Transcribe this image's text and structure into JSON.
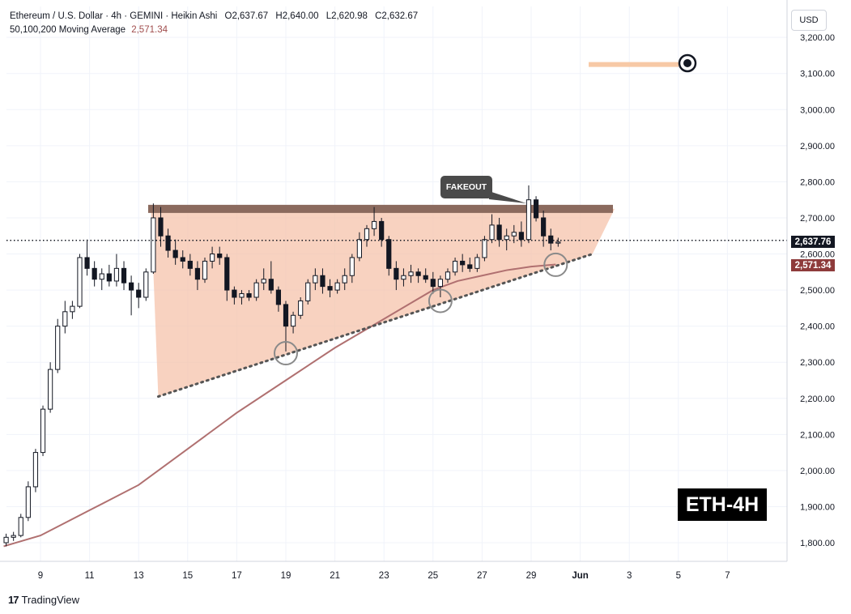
{
  "legend": {
    "symbol": "Ethereum / U.S. Dollar · 4h · GEMINI · Heikin Ashi",
    "o_key": "O",
    "o": "2,637.67",
    "h_key": "H",
    "h": "2,640.00",
    "l_key": "L",
    "l": "2,620.98",
    "c_key": "C",
    "c": "2,632.67",
    "ma_label": "50,100,200 Moving Average",
    "ma_value": "2,571.34"
  },
  "currency": "USD",
  "last_price_tag": "2,637.76",
  "ma_price_tag": "2,571.34",
  "badge": "ETH-4H",
  "annotation": "FAKEOUT",
  "branding": {
    "logo_mark": "17",
    "name": "TradingView"
  },
  "colors": {
    "candle": "#131722",
    "triangle_fill": "#f6c3ab",
    "resistance": "#8b6a5e",
    "ma": "#b07070",
    "target": "#f7c9a6"
  },
  "chart_data": {
    "type": "candlestick",
    "x_tick_labels": [
      "9",
      "11",
      "13",
      "15",
      "17",
      "19",
      "21",
      "23",
      "25",
      "27",
      "29",
      "Jun",
      "3",
      "5",
      "7"
    ],
    "y_tick_labels": [
      "1,800.00",
      "1,900.00",
      "2,000.00",
      "2,100.00",
      "2,200.00",
      "2,300.00",
      "2,400.00",
      "2,500.00",
      "2,600.00",
      "2,700.00",
      "2,800.00",
      "2,900.00",
      "3,000.00",
      "3,100.00",
      "3,200.00"
    ],
    "ylim": [
      1780,
      3250
    ],
    "grid": true,
    "last_price": 2637.76,
    "moving_average": [
      [
        7.5,
        1790
      ],
      [
        9,
        1820
      ],
      [
        11,
        1890
      ],
      [
        13,
        1960
      ],
      [
        15,
        2060
      ],
      [
        17,
        2160
      ],
      [
        19,
        2250
      ],
      [
        21,
        2340
      ],
      [
        23,
        2420
      ],
      [
        24,
        2460
      ],
      [
        25,
        2500
      ],
      [
        26,
        2525
      ],
      [
        27,
        2540
      ],
      [
        28,
        2555
      ],
      [
        29,
        2565
      ],
      [
        30,
        2571
      ]
    ],
    "resistance_level": 2725,
    "rising_trendline": [
      [
        13.8,
        2205
      ],
      [
        31.5,
        2600
      ]
    ],
    "triangle_region": [
      [
        13.5,
        2725
      ],
      [
        13.8,
        2205
      ],
      [
        31.5,
        2600
      ],
      [
        32.4,
        2725
      ]
    ],
    "target_level": 3125,
    "candles": [
      [
        7.6,
        1800,
        1825,
        1790,
        1815
      ],
      [
        7.9,
        1815,
        1830,
        1805,
        1820
      ],
      [
        8.2,
        1820,
        1880,
        1815,
        1870
      ],
      [
        8.5,
        1870,
        1970,
        1860,
        1955
      ],
      [
        8.8,
        1955,
        2060,
        1940,
        2050
      ],
      [
        9.1,
        2050,
        2180,
        2040,
        2170
      ],
      [
        9.4,
        2170,
        2300,
        2160,
        2280
      ],
      [
        9.7,
        2280,
        2420,
        2270,
        2400
      ],
      [
        10.0,
        2400,
        2470,
        2380,
        2440
      ],
      [
        10.3,
        2440,
        2470,
        2420,
        2455
      ],
      [
        10.6,
        2455,
        2600,
        2450,
        2590
      ],
      [
        10.9,
        2590,
        2640,
        2540,
        2560
      ],
      [
        11.2,
        2560,
        2580,
        2510,
        2530
      ],
      [
        11.5,
        2530,
        2560,
        2500,
        2545
      ],
      [
        11.8,
        2545,
        2570,
        2510,
        2525
      ],
      [
        12.1,
        2525,
        2600,
        2510,
        2560
      ],
      [
        12.4,
        2560,
        2580,
        2500,
        2520
      ],
      [
        12.7,
        2520,
        2540,
        2430,
        2500
      ],
      [
        13.0,
        2500,
        2520,
        2450,
        2480
      ],
      [
        13.3,
        2480,
        2560,
        2470,
        2550
      ],
      [
        13.6,
        2550,
        2740,
        2545,
        2700
      ],
      [
        13.9,
        2700,
        2730,
        2620,
        2650
      ],
      [
        14.2,
        2650,
        2670,
        2590,
        2610
      ],
      [
        14.5,
        2610,
        2640,
        2570,
        2590
      ],
      [
        14.8,
        2590,
        2610,
        2560,
        2580
      ],
      [
        15.1,
        2580,
        2600,
        2540,
        2560
      ],
      [
        15.4,
        2560,
        2580,
        2500,
        2530
      ],
      [
        15.7,
        2530,
        2590,
        2520,
        2580
      ],
      [
        16.0,
        2580,
        2620,
        2560,
        2600
      ],
      [
        16.3,
        2600,
        2620,
        2570,
        2590
      ],
      [
        16.6,
        2590,
        2600,
        2470,
        2500
      ],
      [
        16.9,
        2500,
        2510,
        2460,
        2480
      ],
      [
        17.2,
        2480,
        2500,
        2460,
        2490
      ],
      [
        17.5,
        2490,
        2500,
        2470,
        2480
      ],
      [
        17.8,
        2480,
        2530,
        2470,
        2520
      ],
      [
        18.1,
        2520,
        2560,
        2500,
        2530
      ],
      [
        18.4,
        2530,
        2580,
        2490,
        2500
      ],
      [
        18.7,
        2500,
        2510,
        2440,
        2460
      ],
      [
        19.0,
        2460,
        2470,
        2330,
        2400
      ],
      [
        19.3,
        2400,
        2440,
        2380,
        2430
      ],
      [
        19.6,
        2430,
        2480,
        2420,
        2470
      ],
      [
        19.9,
        2470,
        2530,
        2460,
        2520
      ],
      [
        20.2,
        2520,
        2560,
        2500,
        2540
      ],
      [
        20.5,
        2540,
        2560,
        2490,
        2510
      ],
      [
        20.8,
        2510,
        2530,
        2480,
        2500
      ],
      [
        21.1,
        2500,
        2530,
        2490,
        2520
      ],
      [
        21.4,
        2520,
        2560,
        2500,
        2540
      ],
      [
        21.7,
        2540,
        2600,
        2520,
        2590
      ],
      [
        22.0,
        2590,
        2660,
        2580,
        2640
      ],
      [
        22.3,
        2640,
        2680,
        2620,
        2670
      ],
      [
        22.6,
        2670,
        2730,
        2650,
        2690
      ],
      [
        22.9,
        2690,
        2700,
        2620,
        2640
      ],
      [
        23.2,
        2640,
        2650,
        2540,
        2560
      ],
      [
        23.5,
        2560,
        2580,
        2500,
        2530
      ],
      [
        23.8,
        2530,
        2560,
        2510,
        2540
      ],
      [
        24.1,
        2540,
        2570,
        2520,
        2550
      ],
      [
        24.4,
        2550,
        2560,
        2520,
        2540
      ],
      [
        24.7,
        2540,
        2560,
        2520,
        2530
      ],
      [
        25.0,
        2530,
        2550,
        2490,
        2510
      ],
      [
        25.3,
        2510,
        2540,
        2480,
        2530
      ],
      [
        25.6,
        2530,
        2560,
        2520,
        2550
      ],
      [
        25.9,
        2550,
        2590,
        2540,
        2580
      ],
      [
        26.2,
        2580,
        2600,
        2550,
        2570
      ],
      [
        26.5,
        2570,
        2590,
        2550,
        2560
      ],
      [
        26.8,
        2560,
        2600,
        2550,
        2590
      ],
      [
        27.1,
        2590,
        2650,
        2580,
        2640
      ],
      [
        27.4,
        2640,
        2710,
        2630,
        2680
      ],
      [
        27.7,
        2680,
        2700,
        2620,
        2640
      ],
      [
        28.0,
        2640,
        2670,
        2610,
        2650
      ],
      [
        28.3,
        2650,
        2680,
        2630,
        2660
      ],
      [
        28.6,
        2660,
        2690,
        2620,
        2640
      ],
      [
        28.9,
        2640,
        2790,
        2630,
        2750
      ],
      [
        29.2,
        2750,
        2760,
        2690,
        2700
      ],
      [
        29.5,
        2700,
        2720,
        2620,
        2650
      ],
      [
        29.8,
        2650,
        2670,
        2610,
        2630
      ],
      [
        30.1,
        2630,
        2645,
        2620,
        2633
      ]
    ]
  }
}
